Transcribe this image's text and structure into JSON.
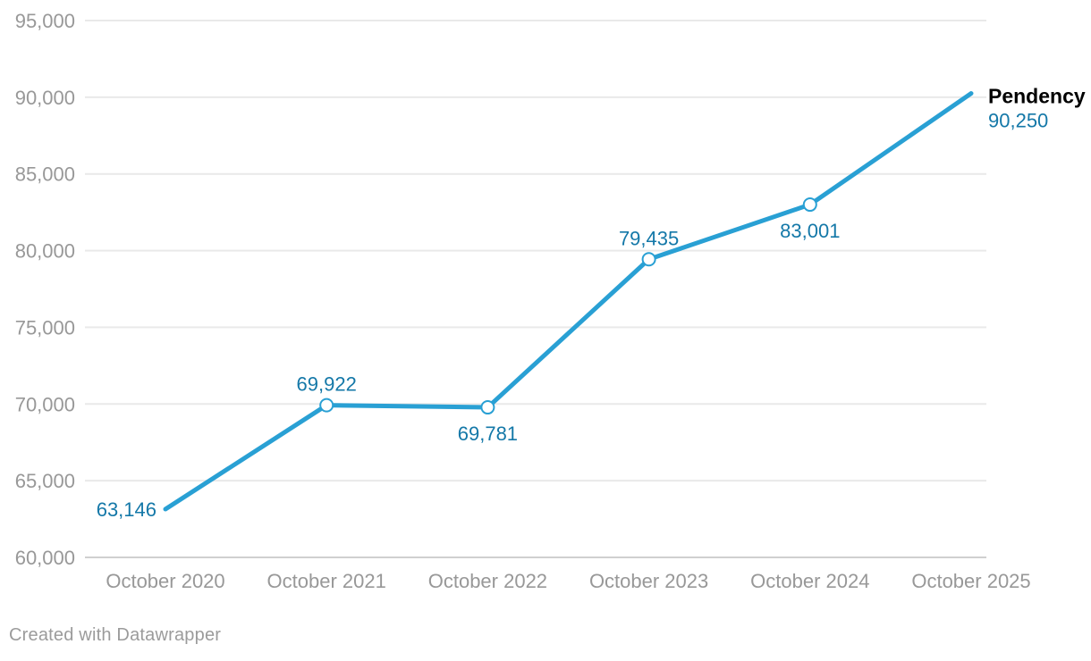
{
  "attribution": "Created with Datawrapper",
  "chart_data": {
    "type": "line",
    "title": "",
    "xlabel": "",
    "ylabel": "",
    "categories": [
      "October 2020",
      "October 2021",
      "October 2022",
      "October 2023",
      "October 2024",
      "October 2025"
    ],
    "series": [
      {
        "name": "Pendency",
        "values": [
          63146,
          69922,
          69781,
          79435,
          83001,
          90250
        ],
        "value_labels": [
          "63,146",
          "69,922",
          "69,781",
          "79,435",
          "83,001",
          "90,250"
        ],
        "label_positions": [
          "left",
          "above",
          "below",
          "above",
          "below",
          "end"
        ],
        "markers": [
          false,
          true,
          true,
          true,
          true,
          false
        ]
      }
    ],
    "ylim": [
      60000,
      95000
    ],
    "ytick_step": 5000,
    "ytick_labels": [
      "60,000",
      "65,000",
      "70,000",
      "75,000",
      "80,000",
      "85,000",
      "90,000",
      "95,000"
    ],
    "grid": true,
    "legend_position": "end-of-line",
    "colors": {
      "line": "#29a0d4",
      "value_label": "#1478a8",
      "series_label": "#000000",
      "grid": "#e9e9e9",
      "baseline_grid": "#d0d0d0",
      "axis_text": "#989898",
      "marker_fill": "#ffffff",
      "background": "#ffffff"
    }
  }
}
